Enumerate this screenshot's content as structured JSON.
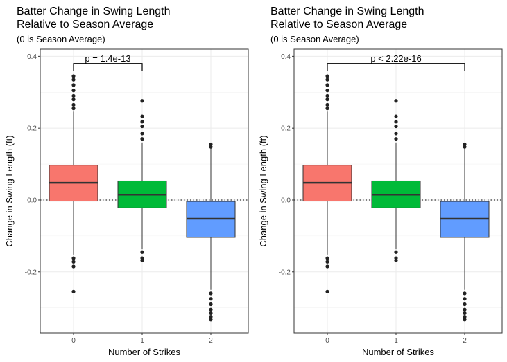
{
  "chart_data": [
    {
      "type": "box",
      "title": "Batter Change in Swing Length\nRelative to Season Average",
      "subtitle": "(0 is Season Average)",
      "xlabel": "Number of Strikes",
      "ylabel": "Change in Swing Length (ft)",
      "categories": [
        "0",
        "1",
        "2"
      ],
      "yticks": [
        "-0.2",
        "0.0",
        "0.2",
        "0.4"
      ],
      "ylim": [
        -0.37,
        0.42
      ],
      "reference_line": 0,
      "grid": true,
      "colors": [
        "#F8766D",
        "#00BA38",
        "#619CFF"
      ],
      "boxes": [
        {
          "category": "0",
          "q1": -0.003,
          "median": 0.048,
          "q3": 0.097,
          "whisker_low": -0.152,
          "whisker_high": 0.246,
          "outliers": [
            0.345,
            0.335,
            0.32,
            0.305,
            0.29,
            0.28,
            0.265,
            0.255,
            -0.162,
            -0.172,
            -0.185,
            -0.255
          ]
        },
        {
          "category": "1",
          "q1": -0.022,
          "median": 0.015,
          "q3": 0.053,
          "whisker_low": -0.137,
          "whisker_high": 0.16,
          "outliers": [
            0.276,
            0.233,
            0.218,
            0.205,
            0.185,
            0.17,
            -0.145,
            -0.162,
            -0.168
          ]
        },
        {
          "category": "2",
          "q1": -0.104,
          "median": -0.052,
          "q3": -0.004,
          "whisker_low": -0.25,
          "whisker_high": 0.145,
          "outliers": [
            0.155,
            0.148,
            -0.26,
            -0.275,
            -0.29,
            -0.305,
            -0.315,
            -0.325,
            -0.333
          ]
        }
      ],
      "comparison": {
        "from": "0",
        "to": "1",
        "label": "p = 1.4e-13"
      }
    },
    {
      "type": "box",
      "title": "Batter Change in Swing Length\nRelative to Season Average",
      "subtitle": "(0 is Season Average)",
      "xlabel": "Number of Strikes",
      "ylabel": "Change in Swing Length (ft)",
      "categories": [
        "0",
        "1",
        "2"
      ],
      "yticks": [
        "-0.2",
        "0.0",
        "0.2",
        "0.4"
      ],
      "ylim": [
        -0.37,
        0.42
      ],
      "reference_line": 0,
      "grid": true,
      "colors": [
        "#F8766D",
        "#00BA38",
        "#619CFF"
      ],
      "boxes": [
        {
          "category": "0",
          "q1": -0.003,
          "median": 0.048,
          "q3": 0.097,
          "whisker_low": -0.152,
          "whisker_high": 0.246,
          "outliers": [
            0.345,
            0.335,
            0.32,
            0.305,
            0.29,
            0.28,
            0.265,
            0.255,
            -0.162,
            -0.172,
            -0.185,
            -0.255
          ]
        },
        {
          "category": "1",
          "q1": -0.022,
          "median": 0.015,
          "q3": 0.053,
          "whisker_low": -0.137,
          "whisker_high": 0.16,
          "outliers": [
            0.276,
            0.233,
            0.218,
            0.205,
            0.185,
            0.17,
            -0.145,
            -0.162,
            -0.168
          ]
        },
        {
          "category": "2",
          "q1": -0.104,
          "median": -0.052,
          "q3": -0.004,
          "whisker_low": -0.25,
          "whisker_high": 0.145,
          "outliers": [
            0.155,
            0.148,
            -0.26,
            -0.275,
            -0.29,
            -0.305,
            -0.315,
            -0.325,
            -0.333
          ]
        }
      ],
      "comparison": {
        "from": "0",
        "to": "2",
        "label": "p < 2.22e-16"
      }
    }
  ]
}
